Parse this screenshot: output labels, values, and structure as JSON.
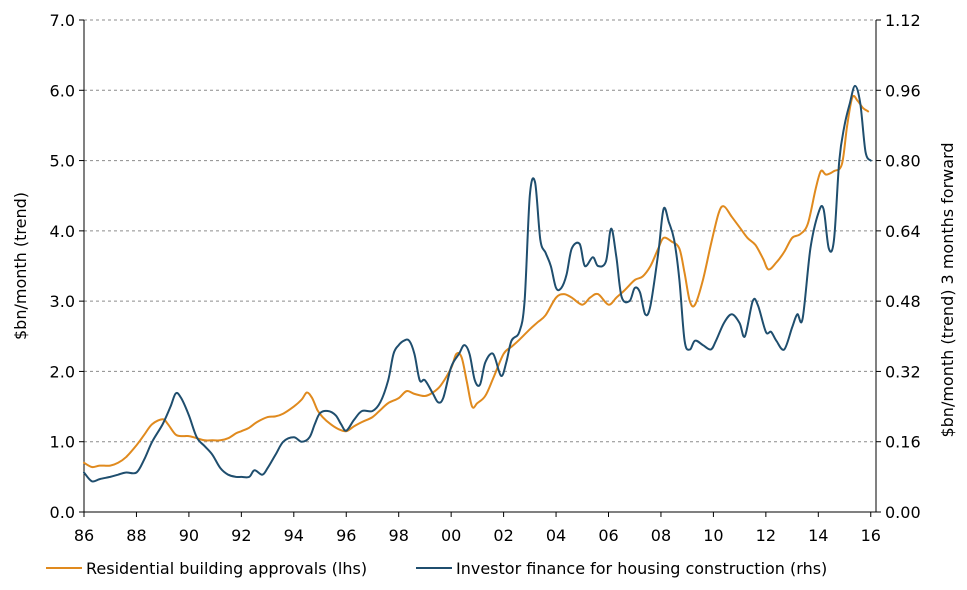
{
  "chart_data": {
    "type": "line",
    "title": "",
    "ylabel_left": "$bn/month (trend)",
    "ylabel_right": "$bn/month (trend) 3 months forward",
    "ylim_left": [
      0,
      7
    ],
    "ylim_right": [
      0,
      1.12
    ],
    "xlim": [
      1986,
      2016.2
    ],
    "grid": "horizontal dashed",
    "legend_position": "bottom",
    "x_ticks": [
      {
        "x": 1986,
        "label": "86"
      },
      {
        "x": 1988,
        "label": "88"
      },
      {
        "x": 1990,
        "label": "90"
      },
      {
        "x": 1992,
        "label": "92"
      },
      {
        "x": 1994,
        "label": "94"
      },
      {
        "x": 1996,
        "label": "96"
      },
      {
        "x": 1998,
        "label": "98"
      },
      {
        "x": 2000,
        "label": "00"
      },
      {
        "x": 2002,
        "label": "02"
      },
      {
        "x": 2004,
        "label": "04"
      },
      {
        "x": 2006,
        "label": "06"
      },
      {
        "x": 2008,
        "label": "08"
      },
      {
        "x": 2010,
        "label": "10"
      },
      {
        "x": 2012,
        "label": "12"
      },
      {
        "x": 2014,
        "label": "14"
      },
      {
        "x": 2016,
        "label": "16"
      }
    ],
    "y_ticks_left": [
      {
        "v": 0,
        "label": "0.0"
      },
      {
        "v": 1,
        "label": "1.0"
      },
      {
        "v": 2,
        "label": "2.0"
      },
      {
        "v": 3,
        "label": "3.0"
      },
      {
        "v": 4,
        "label": "4.0"
      },
      {
        "v": 5,
        "label": "5.0"
      },
      {
        "v": 6,
        "label": "6.0"
      },
      {
        "v": 7,
        "label": "7.0"
      }
    ],
    "y_ticks_right": [
      {
        "v": 0,
        "label": "0.00"
      },
      {
        "v": 0.16,
        "label": "0.16"
      },
      {
        "v": 0.32,
        "label": "0.32"
      },
      {
        "v": 0.48,
        "label": "0.48"
      },
      {
        "v": 0.64,
        "label": "0.64"
      },
      {
        "v": 0.8,
        "label": "0.80"
      },
      {
        "v": 0.96,
        "label": "0.96"
      },
      {
        "v": 1.12,
        "label": "1.12"
      }
    ],
    "series": [
      {
        "name": "Residential building approvals (lhs)",
        "axis": "left",
        "color": "#E08A1E",
        "x": [
          1986.0,
          1986.3,
          1986.6,
          1987.0,
          1987.3,
          1987.6,
          1988.0,
          1988.3,
          1988.6,
          1989.0,
          1989.2,
          1989.5,
          1989.8,
          1990.0,
          1990.3,
          1990.6,
          1990.9,
          1991.2,
          1991.5,
          1991.8,
          1992.0,
          1992.3,
          1992.6,
          1993.0,
          1993.3,
          1993.6,
          1994.0,
          1994.3,
          1994.5,
          1994.7,
          1994.9,
          1995.1,
          1995.4,
          1995.7,
          1996.0,
          1996.3,
          1996.6,
          1997.0,
          1997.3,
          1997.6,
          1998.0,
          1998.3,
          1998.6,
          1999.0,
          1999.3,
          1999.6,
          2000.0,
          2000.2,
          2000.4,
          2000.6,
          2000.8,
          2001.0,
          2001.3,
          2001.6,
          2002.0,
          2002.3,
          2002.6,
          2003.0,
          2003.3,
          2003.6,
          2004.0,
          2004.3,
          2004.6,
          2005.0,
          2005.3,
          2005.6,
          2006.0,
          2006.3,
          2006.6,
          2007.0,
          2007.3,
          2007.6,
          2007.9,
          2008.1,
          2008.4,
          2008.7,
          2008.9,
          2009.1,
          2009.3,
          2009.6,
          2009.9,
          2010.2,
          2010.4,
          2010.7,
          2011.0,
          2011.3,
          2011.6,
          2011.9,
          2012.1,
          2012.4,
          2012.7,
          2013.0,
          2013.3,
          2013.6,
          2013.9,
          2014.1,
          2014.3,
          2014.6,
          2014.9,
          2015.1,
          2015.3,
          2015.5,
          2015.7,
          2015.9
        ],
        "values": [
          0.7,
          0.64,
          0.66,
          0.66,
          0.7,
          0.78,
          0.95,
          1.1,
          1.25,
          1.32,
          1.25,
          1.1,
          1.08,
          1.08,
          1.05,
          1.02,
          1.02,
          1.02,
          1.05,
          1.12,
          1.15,
          1.2,
          1.28,
          1.35,
          1.36,
          1.4,
          1.5,
          1.6,
          1.7,
          1.62,
          1.45,
          1.35,
          1.25,
          1.18,
          1.15,
          1.22,
          1.28,
          1.35,
          1.45,
          1.55,
          1.62,
          1.72,
          1.68,
          1.65,
          1.7,
          1.8,
          2.05,
          2.25,
          2.2,
          1.85,
          1.5,
          1.55,
          1.65,
          1.9,
          2.25,
          2.35,
          2.45,
          2.6,
          2.7,
          2.8,
          3.05,
          3.1,
          3.05,
          2.95,
          3.05,
          3.1,
          2.95,
          3.05,
          3.15,
          3.3,
          3.35,
          3.5,
          3.75,
          3.9,
          3.85,
          3.75,
          3.4,
          3.0,
          2.95,
          3.3,
          3.8,
          4.25,
          4.35,
          4.2,
          4.05,
          3.9,
          3.8,
          3.6,
          3.45,
          3.55,
          3.7,
          3.9,
          3.95,
          4.1,
          4.6,
          4.85,
          4.8,
          4.85,
          4.95,
          5.5,
          5.9,
          5.85,
          5.75,
          5.7
        ]
      },
      {
        "name": "Investor finance for housing construction (rhs)",
        "axis": "right",
        "color": "#1F4E6E",
        "x": [
          1986.0,
          1986.3,
          1986.6,
          1987.0,
          1987.3,
          1987.6,
          1988.0,
          1988.3,
          1988.6,
          1989.0,
          1989.3,
          1989.5,
          1989.7,
          1990.0,
          1990.3,
          1990.6,
          1990.9,
          1991.2,
          1991.5,
          1991.8,
          1992.0,
          1992.3,
          1992.5,
          1992.8,
          1993.0,
          1993.3,
          1993.6,
          1994.0,
          1994.3,
          1994.6,
          1994.8,
          1995.0,
          1995.3,
          1995.6,
          1995.8,
          1996.0,
          1996.3,
          1996.6,
          1997.0,
          1997.3,
          1997.6,
          1997.8,
          1998.0,
          1998.2,
          1998.4,
          1998.6,
          1998.8,
          1999.0,
          1999.3,
          1999.5,
          1999.7,
          2000.0,
          2000.3,
          2000.5,
          2000.7,
          2000.9,
          2001.1,
          2001.3,
          2001.6,
          2001.9,
          2002.1,
          2002.3,
          2002.6,
          2002.8,
          2003.0,
          2003.2,
          2003.4,
          2003.6,
          2003.8,
          2004.0,
          2004.2,
          2004.4,
          2004.6,
          2004.9,
          2005.1,
          2005.4,
          2005.6,
          2005.9,
          2006.1,
          2006.3,
          2006.5,
          2006.8,
          2007.0,
          2007.2,
          2007.4,
          2007.6,
          2007.9,
          2008.1,
          2008.3,
          2008.5,
          2008.7,
          2008.9,
          2009.1,
          2009.3,
          2009.6,
          2009.9,
          2010.1,
          2010.4,
          2010.7,
          2011.0,
          2011.2,
          2011.5,
          2011.7,
          2012.0,
          2012.2,
          2012.4,
          2012.7,
          2013.0,
          2013.2,
          2013.4,
          2013.7,
          2014.0,
          2014.2,
          2014.4,
          2014.6,
          2014.8,
          2015.0,
          2015.2,
          2015.4,
          2015.6,
          2015.8,
          2016.0
        ],
        "values": [
          0.09,
          0.07,
          0.075,
          0.08,
          0.085,
          0.09,
          0.09,
          0.12,
          0.16,
          0.2,
          0.24,
          0.27,
          0.26,
          0.22,
          0.17,
          0.15,
          0.13,
          0.1,
          0.085,
          0.08,
          0.08,
          0.08,
          0.095,
          0.085,
          0.1,
          0.13,
          0.16,
          0.17,
          0.16,
          0.17,
          0.2,
          0.225,
          0.23,
          0.22,
          0.2,
          0.185,
          0.21,
          0.23,
          0.23,
          0.25,
          0.3,
          0.36,
          0.38,
          0.39,
          0.39,
          0.36,
          0.3,
          0.3,
          0.27,
          0.25,
          0.26,
          0.33,
          0.36,
          0.38,
          0.36,
          0.3,
          0.29,
          0.34,
          0.36,
          0.31,
          0.34,
          0.39,
          0.41,
          0.48,
          0.72,
          0.75,
          0.62,
          0.59,
          0.56,
          0.51,
          0.51,
          0.54,
          0.6,
          0.61,
          0.56,
          0.58,
          0.56,
          0.57,
          0.645,
          0.58,
          0.49,
          0.48,
          0.51,
          0.5,
          0.45,
          0.47,
          0.59,
          0.69,
          0.66,
          0.62,
          0.53,
          0.39,
          0.37,
          0.39,
          0.38,
          0.37,
          0.39,
          0.43,
          0.45,
          0.43,
          0.4,
          0.48,
          0.47,
          0.41,
          0.41,
          0.39,
          0.37,
          0.42,
          0.45,
          0.44,
          0.6,
          0.68,
          0.69,
          0.6,
          0.62,
          0.8,
          0.88,
          0.93,
          0.97,
          0.93,
          0.82,
          0.8
        ]
      }
    ]
  }
}
